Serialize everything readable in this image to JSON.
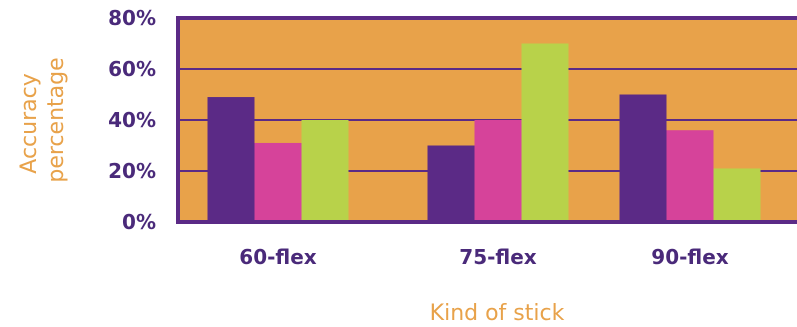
{
  "chart_data": {
    "type": "bar",
    "title": "",
    "xlabel": "Kind of stick",
    "ylabel_lines": [
      "Accuracy",
      "percentage"
    ],
    "categories": [
      "60-flex",
      "75-flex",
      "90-flex"
    ],
    "series": [
      {
        "values": [
          49,
          30,
          50
        ]
      },
      {
        "values": [
          31,
          40,
          36
        ]
      },
      {
        "values": [
          40,
          70,
          21
        ]
      }
    ],
    "ylim": [
      0,
      80
    ],
    "yticks": [
      0,
      20,
      40,
      60,
      80
    ],
    "ytick_labels": [
      "0%",
      "20%",
      "40%",
      "60%",
      "80%"
    ],
    "grid": true,
    "colors": {
      "plot_background": "#e8a24a",
      "frame": "#5b2a86",
      "gridline": "#5b2a86",
      "tick_text": "#4a2a7a",
      "axis_title": "#e8a24a",
      "series": [
        "#5b2a86",
        "#d6439a",
        "#b8d24a"
      ]
    }
  }
}
